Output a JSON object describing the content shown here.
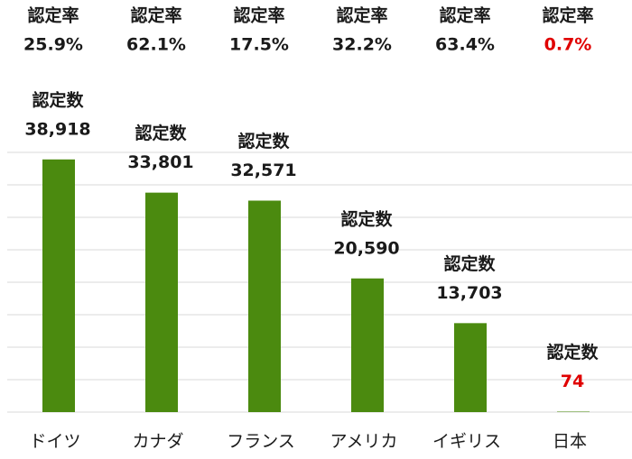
{
  "chart_data": {
    "type": "bar",
    "categories": [
      "ドイツ",
      "カナダ",
      "フランス",
      "アメリカ",
      "イギリス",
      "日本"
    ],
    "count_label": "認定数",
    "values": [
      38918,
      33801,
      32571,
      20590,
      13703,
      74
    ],
    "value_labels": [
      "38,918",
      "33,801",
      "32,571",
      "20,590",
      "13,703",
      "74"
    ],
    "rate_label": "認定率",
    "rates": [
      25.9,
      62.1,
      17.5,
      32.2,
      63.4,
      0.7
    ],
    "rate_labels": [
      "25.9%",
      "62.1%",
      "17.5%",
      "32.2%",
      "63.4%",
      "0.7%"
    ],
    "color": "#4b8a0f",
    "label_colors": [
      "#1a1a1a",
      "#1a1a1a",
      "#1a1a1a",
      "#1a1a1a",
      "#1a1a1a",
      "#e00000"
    ],
    "ylim": [
      0,
      40000
    ],
    "yticks": [
      0,
      5000,
      10000,
      15000,
      20000,
      25000,
      30000,
      35000,
      40000
    ],
    "grid": true
  }
}
